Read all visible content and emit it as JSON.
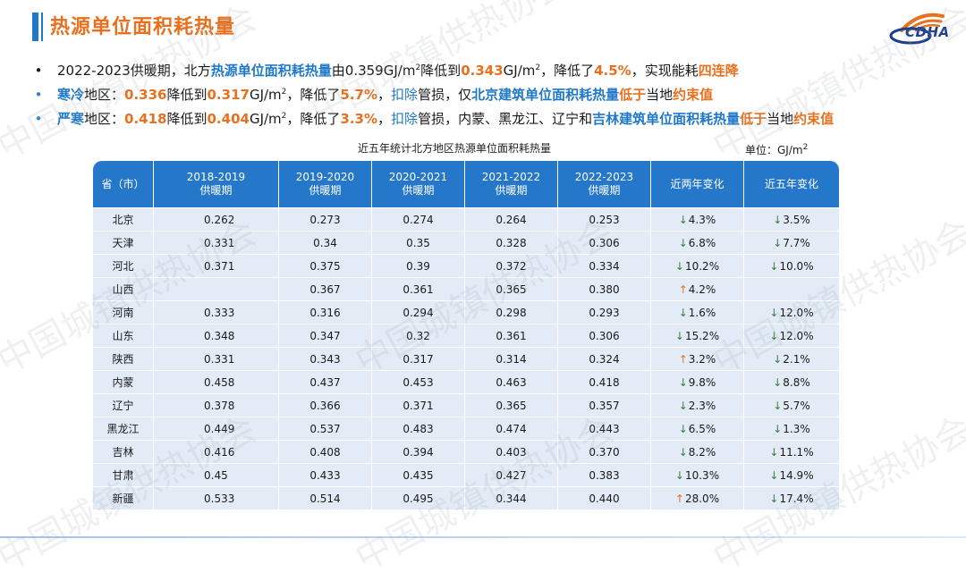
{
  "header": {
    "title": "热源单位面积耗热量",
    "logo_text": "CDHA"
  },
  "watermark": "中国城镇供热协会",
  "bullets": [
    {
      "p1": "2022-2023供暖期，北方",
      "p2": "热源单位面积耗热量",
      "p3": "由0.359GJ/m",
      "p3sup": "2",
      "p4": "降低到",
      "p5": "0.343",
      "p6": "GJ/m",
      "p6sup": "2",
      "p7": "，降低了",
      "p8": "4.5%",
      "p9": "，实现能耗",
      "p10": "四连降"
    },
    {
      "p1": "寒冷",
      "p2": "地区：",
      "p3": "0.336",
      "p4": "降低到",
      "p5": "0.317",
      "p6": "GJ/m",
      "p6sup": "2",
      "p7": "，降低了",
      "p8": "5.7%",
      "p9": "，",
      "p10": "扣除",
      "p11": "管损，仅",
      "p12": "北京建筑单位面积耗热量",
      "p13": "低于",
      "p14": "当地",
      "p15": "约束值"
    },
    {
      "p1": "严寒",
      "p2": "地区：",
      "p3": "0.418",
      "p4": "降低到",
      "p5": "0.404",
      "p6": "GJ/m",
      "p6sup": "2",
      "p7": "，降低了",
      "p8": "3.3%",
      "p9": "，",
      "p10": "扣除",
      "p11": "管损，内蒙、黑龙江、辽宁和",
      "p12": "吉林建筑单位面积耗热量",
      "p13": "低于",
      "p14": "当地",
      "p15": "约束值"
    }
  ],
  "table": {
    "caption": "近五年统计北方地区热源单位面积耗热量",
    "unit": "单位：GJ/m",
    "unit_sup": "2",
    "headers": [
      {
        "l1": "省（市）",
        "l2": ""
      },
      {
        "l1": "2018-2019",
        "l2": "供暖期"
      },
      {
        "l1": "2019-2020",
        "l2": "供暖期"
      },
      {
        "l1": "2020-2021",
        "l2": "供暖期"
      },
      {
        "l1": "2021-2022",
        "l2": "供暖期"
      },
      {
        "l1": "2022-2023",
        "l2": "供暖期"
      },
      {
        "l1": "近两年变化",
        "l2": ""
      },
      {
        "l1": "近五年变化",
        "l2": ""
      }
    ],
    "rows": [
      {
        "prov": "北京",
        "v": [
          "0.262",
          "0.273",
          "0.274",
          "0.264",
          "0.253"
        ],
        "c2": {
          "dir": "down",
          "val": "4.3%"
        },
        "c5": {
          "dir": "down",
          "val": "3.5%"
        }
      },
      {
        "prov": "天津",
        "v": [
          "0.331",
          "0.34",
          "0.35",
          "0.328",
          "0.306"
        ],
        "c2": {
          "dir": "down",
          "val": "6.8%"
        },
        "c5": {
          "dir": "down",
          "val": "7.7%"
        }
      },
      {
        "prov": "河北",
        "v": [
          "0.371",
          "0.375",
          "0.39",
          "0.372",
          "0.334"
        ],
        "c2": {
          "dir": "down",
          "val": "10.2%"
        },
        "c5": {
          "dir": "down",
          "val": "10.0%"
        }
      },
      {
        "prov": "山西",
        "v": [
          "",
          "0.367",
          "0.361",
          "0.365",
          "0.380"
        ],
        "c2": {
          "dir": "up",
          "val": "4.2%"
        },
        "c5": {
          "dir": "",
          "val": ""
        }
      },
      {
        "prov": "河南",
        "v": [
          "0.333",
          "0.316",
          "0.294",
          "0.298",
          "0.293"
        ],
        "c2": {
          "dir": "down",
          "val": "1.6%"
        },
        "c5": {
          "dir": "down",
          "val": "12.0%"
        }
      },
      {
        "prov": "山东",
        "v": [
          "0.348",
          "0.347",
          "0.32",
          "0.361",
          "0.306"
        ],
        "c2": {
          "dir": "down",
          "val": "15.2%"
        },
        "c5": {
          "dir": "down",
          "val": "12.0%"
        }
      },
      {
        "prov": "陕西",
        "v": [
          "0.331",
          "0.343",
          "0.317",
          "0.314",
          "0.324"
        ],
        "c2": {
          "dir": "up",
          "val": "3.2%"
        },
        "c5": {
          "dir": "down",
          "val": "2.1%"
        }
      },
      {
        "prov": "内蒙",
        "v": [
          "0.458",
          "0.437",
          "0.453",
          "0.463",
          "0.418"
        ],
        "c2": {
          "dir": "down",
          "val": "9.8%"
        },
        "c5": {
          "dir": "down",
          "val": "8.8%"
        }
      },
      {
        "prov": "辽宁",
        "v": [
          "0.378",
          "0.366",
          "0.371",
          "0.365",
          "0.357"
        ],
        "c2": {
          "dir": "down",
          "val": "2.3%"
        },
        "c5": {
          "dir": "down",
          "val": "5.7%"
        }
      },
      {
        "prov": "黑龙江",
        "v": [
          "0.449",
          "0.537",
          "0.483",
          "0.474",
          "0.443"
        ],
        "c2": {
          "dir": "down",
          "val": "6.5%"
        },
        "c5": {
          "dir": "down",
          "val": "1.3%"
        }
      },
      {
        "prov": "吉林",
        "v": [
          "0.416",
          "0.408",
          "0.394",
          "0.403",
          "0.370"
        ],
        "c2": {
          "dir": "down",
          "val": "8.2%"
        },
        "c5": {
          "dir": "down",
          "val": "11.1%"
        }
      },
      {
        "prov": "甘肃",
        "v": [
          "0.45",
          "0.433",
          "0.435",
          "0.427",
          "0.383"
        ],
        "c2": {
          "dir": "down",
          "val": "10.3%"
        },
        "c5": {
          "dir": "down",
          "val": "14.9%"
        }
      },
      {
        "prov": "新疆",
        "v": [
          "0.533",
          "0.514",
          "0.495",
          "0.344",
          "0.440"
        ],
        "c2": {
          "dir": "up",
          "val": "28.0%"
        },
        "c5": {
          "dir": "down",
          "val": "17.4%"
        }
      }
    ]
  },
  "colors": {
    "title_orange": "#e8701f",
    "accent_blue": "#1f78c8",
    "header_blue": "#2577c9",
    "cell_bg": "#e3ecf6",
    "arrow_down": "#3a7d3a",
    "arrow_up": "#e8701f"
  },
  "icons": {
    "down": "↓",
    "up": "↑"
  }
}
